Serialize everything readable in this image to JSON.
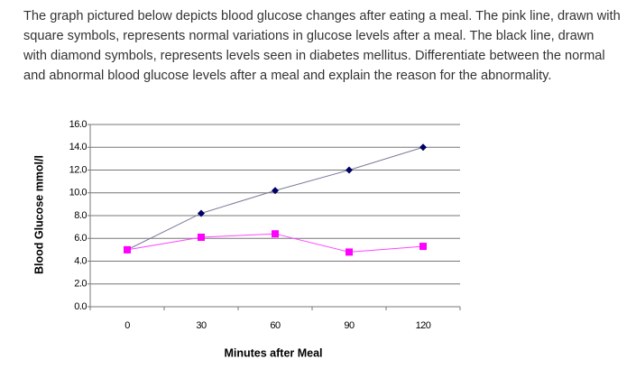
{
  "question": "The graph pictured below depicts blood glucose changes after eating a meal. The pink line, drawn with square symbols, represents normal variations in glucose levels after a meal. The black line, drawn with diamond symbols, represents levels seen in diabetes mellitus. Differentiate between the normal and abnormal blood glucose levels after a meal and explain the reason for the abnormality.",
  "chart_data": {
    "type": "line",
    "x_label": "Minutes after Meal",
    "y_label": "Blood Glucose mmol/l",
    "categories": [
      "0",
      "30",
      "60",
      "90",
      "120"
    ],
    "series": [
      {
        "color": "#000066",
        "line_color": "#7a7a99",
        "marker": "diamond",
        "values": [
          5.0,
          8.2,
          10.2,
          12.0,
          14.0
        ]
      },
      {
        "color": "#ff00ff",
        "line_color": "#ff44ff",
        "marker": "square",
        "values": [
          5.0,
          6.1,
          6.4,
          4.8,
          5.3
        ]
      }
    ],
    "ylim": [
      0,
      16
    ],
    "yticks": [
      {
        "value": 0,
        "label": "0.0"
      },
      {
        "value": 2,
        "label": "2.0"
      },
      {
        "value": 4,
        "label": "4.0"
      },
      {
        "value": 6,
        "label": "6.0"
      },
      {
        "value": 8,
        "label": "8.0"
      },
      {
        "value": 10,
        "label": "10.0"
      },
      {
        "value": 12,
        "label": "12.0"
      },
      {
        "value": 14,
        "label": "14.0"
      },
      {
        "value": 16,
        "label": "16.0"
      }
    ],
    "grid": true
  }
}
